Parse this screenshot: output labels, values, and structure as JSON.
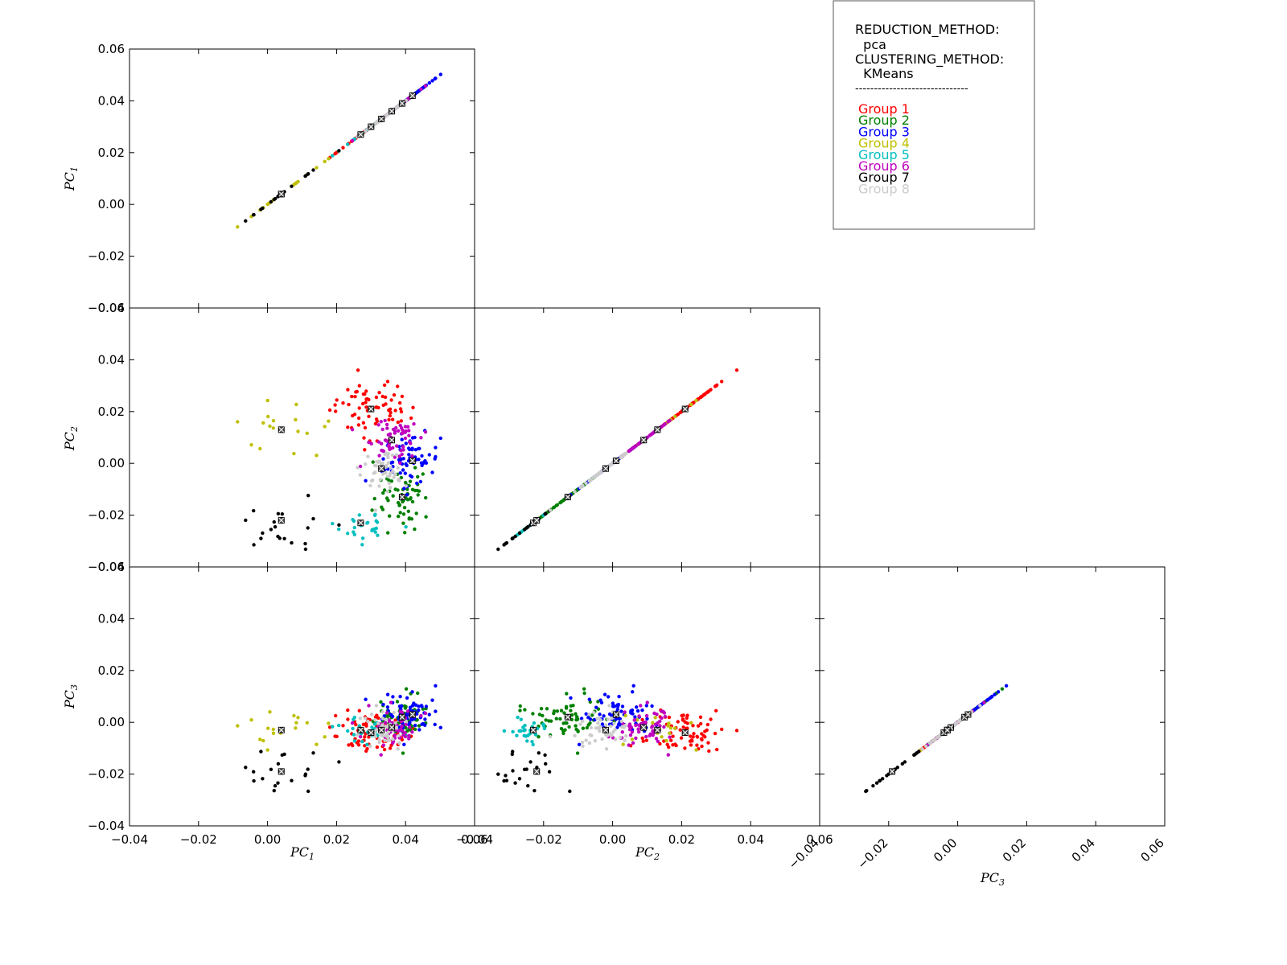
{
  "legend": {
    "lines": [
      "REDUCTION_METHOD:",
      "  pca",
      "CLUSTERING_METHOD:",
      "  KMeans",
      "------------------------------"
    ],
    "groups": [
      {
        "label": "Group 1",
        "color": "#ff0000"
      },
      {
        "label": "Group 2",
        "color": "#008000"
      },
      {
        "label": "Group 3",
        "color": "#0000ff"
      },
      {
        "label": "Group 4",
        "color": "#bfbf00"
      },
      {
        "label": "Group 5",
        "color": "#00bfbf"
      },
      {
        "label": "Group 6",
        "color": "#bf00bf"
      },
      {
        "label": "Group 7",
        "color": "#000000"
      },
      {
        "label": "Group 8",
        "color": "#cccccc"
      }
    ]
  },
  "axis_titles": {
    "pc1": "PC",
    "pc2": "PC",
    "pc3": "PC",
    "pc1_sub": "1",
    "pc2_sub": "2",
    "pc3_sub": "3"
  },
  "chart_data": {
    "type": "scatter",
    "title": "",
    "components": [
      "PC1",
      "PC2",
      "PC3"
    ],
    "ylim": [
      -0.04,
      0.06
    ],
    "xlim": [
      -0.04,
      0.06
    ],
    "y_ticks": [
      "−0.04",
      "−0.02",
      "0.00",
      "0.02",
      "0.04",
      "0.06"
    ],
    "x_ticks": [
      "−0.04",
      "−0.02",
      "0.00",
      "0.02",
      "0.04",
      "0.06"
    ],
    "panels": [
      {
        "id": "pc1-vs-pc1",
        "x": "PC1",
        "y": "PC1"
      },
      {
        "id": "pc1-vs-pc2",
        "x": "PC1",
        "y": "PC2"
      },
      {
        "id": "pc2-vs-pc2",
        "x": "PC2",
        "y": "PC2"
      },
      {
        "id": "pc1-vs-pc3",
        "x": "PC1",
        "y": "PC3"
      },
      {
        "id": "pc2-vs-pc3",
        "x": "PC2",
        "y": "PC3"
      },
      {
        "id": "pc3-vs-pc3",
        "x": "PC3",
        "y": "PC3"
      }
    ],
    "clusters": [
      {
        "group": "Group 1",
        "center": [
          0.03,
          0.021,
          -0.004
        ],
        "spread": [
          0.006,
          0.006,
          0.004
        ],
        "n": 70
      },
      {
        "group": "Group 2",
        "center": [
          0.039,
          -0.013,
          0.002
        ],
        "spread": [
          0.004,
          0.006,
          0.004
        ],
        "n": 65
      },
      {
        "group": "Group 3",
        "center": [
          0.042,
          0.001,
          0.003
        ],
        "spread": [
          0.004,
          0.005,
          0.004
        ],
        "n": 70
      },
      {
        "group": "Group 4",
        "center": [
          0.004,
          0.013,
          -0.003
        ],
        "spread": [
          0.007,
          0.005,
          0.003
        ],
        "n": 18
      },
      {
        "group": "Group 5",
        "center": [
          0.027,
          -0.023,
          -0.003
        ],
        "spread": [
          0.004,
          0.004,
          0.004
        ],
        "n": 28
      },
      {
        "group": "Group 6",
        "center": [
          0.036,
          0.009,
          -0.002
        ],
        "spread": [
          0.004,
          0.004,
          0.004
        ],
        "n": 60
      },
      {
        "group": "Group 7",
        "center": [
          0.004,
          -0.022,
          -0.019
        ],
        "spread": [
          0.007,
          0.005,
          0.005
        ],
        "n": 20
      },
      {
        "group": "Group 8",
        "center": [
          0.033,
          -0.002,
          -0.003
        ],
        "spread": [
          0.003,
          0.004,
          0.003
        ],
        "n": 50
      }
    ],
    "markers": [
      [
        0.03,
        0.021,
        -0.004
      ],
      [
        0.039,
        -0.013,
        0.002
      ],
      [
        0.042,
        0.001,
        0.003
      ],
      [
        0.004,
        0.013,
        -0.003
      ],
      [
        0.027,
        -0.023,
        -0.003
      ],
      [
        0.036,
        0.009,
        -0.002
      ],
      [
        0.004,
        -0.022,
        -0.019
      ],
      [
        0.033,
        -0.002,
        -0.003
      ]
    ]
  }
}
